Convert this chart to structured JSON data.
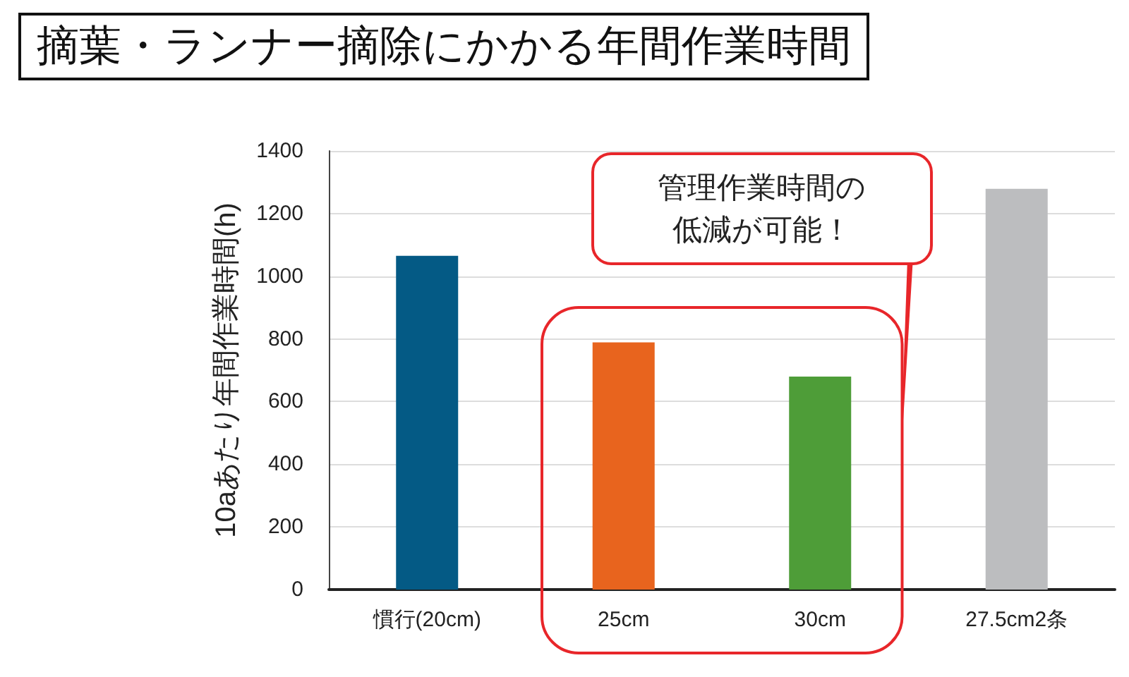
{
  "chart_data": {
    "type": "bar",
    "title": "摘葉・ランナー摘除にかかる年間作業時間",
    "ylabel": "10aあたり年間作業時間(h)",
    "categories": [
      "慣行(20cm)",
      "25cm",
      "30cm",
      "27.5cm2条"
    ],
    "values": [
      1065,
      789,
      680,
      1279
    ],
    "colors": [
      "#045a85",
      "#e8641e",
      "#4e9d38",
      "#bcbdbf"
    ],
    "ylim": [
      0,
      1400
    ],
    "yticks": [
      0,
      200,
      400,
      600,
      800,
      1000,
      1200,
      1400
    ],
    "grid": "y",
    "annotations": [
      "管理作業時間の低減が可能！"
    ]
  }
}
